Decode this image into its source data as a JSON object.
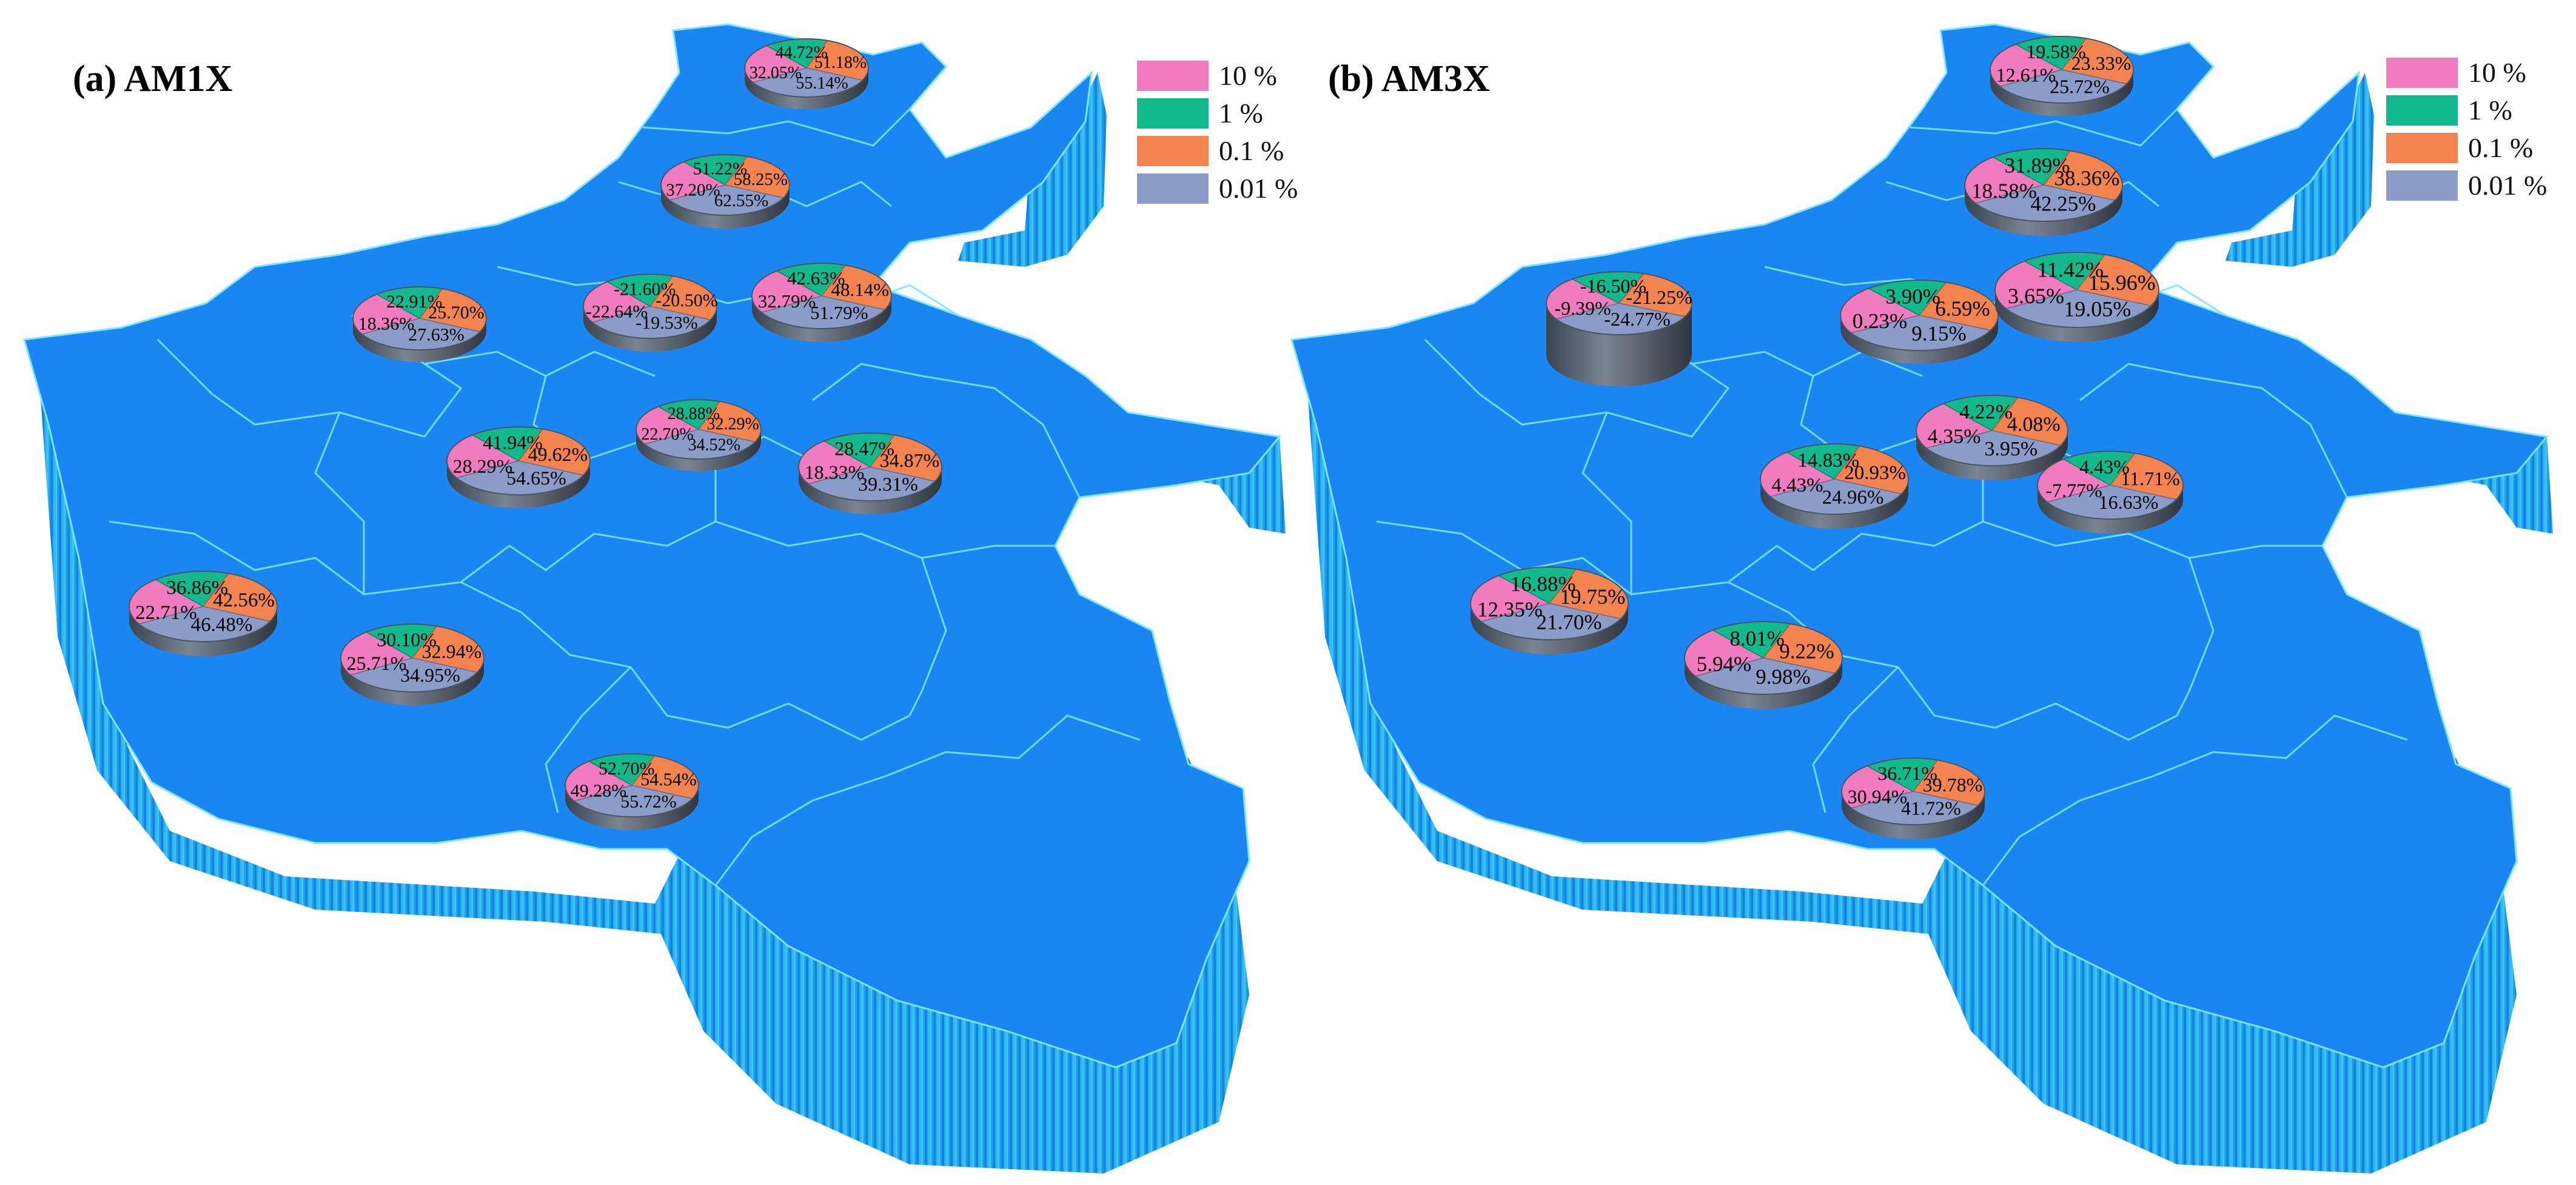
{
  "colors": {
    "map_face": "#1b86f2",
    "map_side": "#1ea9ee",
    "map_side_dark": "#0d6fd0",
    "boundary": "#7ae6ff",
    "s10": "#f07cbf",
    "s1": "#12b98d",
    "s01": "#f4844f",
    "s001": "#8c9cc9"
  },
  "legend": [
    {
      "key": "s10",
      "label": "10 %"
    },
    {
      "key": "s1",
      "label": "1 %"
    },
    {
      "key": "s01",
      "label": "0.1 %"
    },
    {
      "key": "s001",
      "label": "0.01 %"
    }
  ],
  "panels": [
    {
      "title": "(a) AM1X",
      "pies": [
        {
          "v": [
            "32.05%",
            "44.72%",
            "51.18%",
            "55.14%"
          ]
        },
        {
          "v": [
            "37.20%",
            "51.22%",
            "58.25%",
            "62.55%"
          ]
        },
        {
          "v": [
            "18.36%",
            "22.91%",
            "25.70%",
            "27.63%"
          ]
        },
        {
          "v": [
            "-22.64%",
            "-21.60%",
            "-20.50%",
            "-19.53%"
          ]
        },
        {
          "v": [
            "32.79%",
            "42.63%",
            "48.14%",
            "51.79%"
          ]
        },
        {
          "v": [
            "22.70%",
            "28.88%",
            "32.29%",
            "34.52%"
          ]
        },
        {
          "v": [
            "28.29%",
            "41.94%",
            "49.62%",
            "54.65%"
          ]
        },
        {
          "v": [
            "18.33%",
            "28.47%",
            "34.87%",
            "39.31%"
          ]
        },
        {
          "v": [
            "22.71%",
            "36.86%",
            "42.56%",
            "46.48%"
          ]
        },
        {
          "v": [
            "25.71%",
            "30.10%",
            "32.94%",
            "34.95%"
          ]
        },
        {
          "v": [
            "49.28%",
            "52.70%",
            "54.54%",
            "55.72%"
          ]
        }
      ]
    },
    {
      "title": "(b) AM3X",
      "pies": [
        {
          "v": [
            "12.61%",
            "19.58%",
            "23.33%",
            "25.72%"
          ]
        },
        {
          "v": [
            "18.58%",
            "31.89%",
            "38.36%",
            "42.25%"
          ]
        },
        {
          "v": [
            "-9.39%",
            "-16.50%",
            "-21.25%",
            "-24.77%"
          ]
        },
        {
          "v": [
            "0.23%",
            "3.90%",
            "6.59%",
            "9.15%"
          ]
        },
        {
          "v": [
            "3.65%",
            "11.42%",
            "15.96%",
            "19.05%"
          ]
        },
        {
          "v": [
            "4.35%",
            "4.22%",
            "4.08%",
            "3.95%"
          ]
        },
        {
          "v": [
            "4.43%",
            "14.83%",
            "20.93%",
            "24.96%"
          ]
        },
        {
          "v": [
            "-7.77%",
            "4.43%",
            "11.71%",
            "16.63%"
          ]
        },
        {
          "v": [
            "12.35%",
            "16.88%",
            "19.75%",
            "21.70%"
          ]
        },
        {
          "v": [
            "5.94%",
            "8.01%",
            "9.22%",
            "9.98%"
          ]
        },
        {
          "v": [
            "30.94%",
            "36.71%",
            "39.78%",
            "41.72%"
          ]
        }
      ]
    }
  ]
}
